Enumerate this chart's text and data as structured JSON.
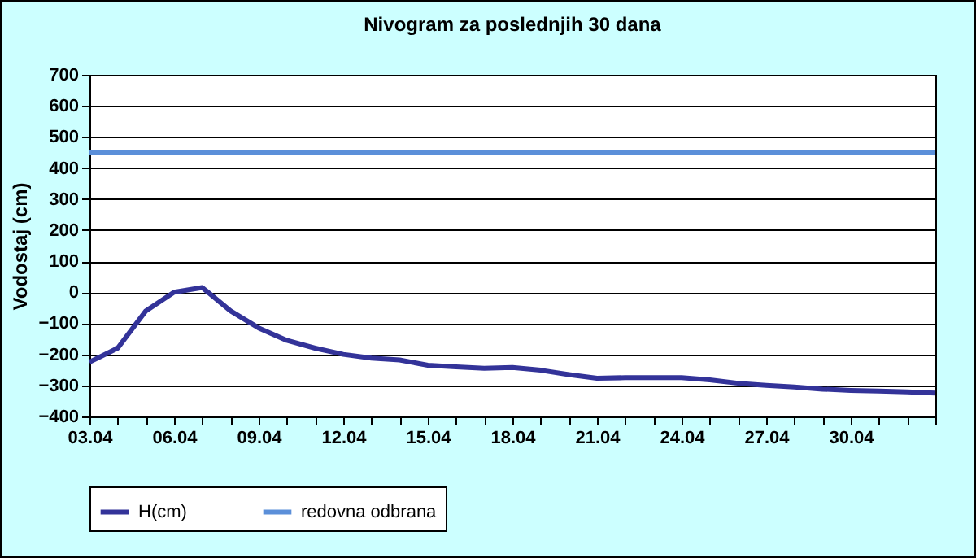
{
  "chart_data": {
    "type": "line",
    "title": "Nivogram za poslednjih 30 dana",
    "ylabel": "Vodostaj (cm)",
    "categories": [
      "03.04",
      null,
      null,
      "06.04",
      null,
      null,
      "09.04",
      null,
      null,
      "12.04",
      null,
      null,
      "15.04",
      null,
      null,
      "18.04",
      null,
      null,
      "21.04",
      null,
      null,
      "24.04",
      null,
      null,
      "27.04",
      null,
      null,
      "30.04",
      null,
      null,
      null
    ],
    "series": [
      {
        "name": "H(cm)",
        "color": "#333399",
        "values": [
          -225,
          -180,
          -60,
          0,
          15,
          -60,
          -115,
          -155,
          -180,
          -200,
          -212,
          -218,
          -235,
          -240,
          -245,
          -242,
          -251,
          -265,
          -277,
          -275,
          -275,
          -275,
          -282,
          -293,
          -300,
          -305,
          -312,
          -316,
          -318,
          -321,
          -325
        ]
      },
      {
        "name": "redovna odbrana",
        "color": "#5b8fd9",
        "values": [
          450,
          450,
          450,
          450,
          450,
          450,
          450,
          450,
          450,
          450,
          450,
          450,
          450,
          450,
          450,
          450,
          450,
          450,
          450,
          450,
          450,
          450,
          450,
          450,
          450,
          450,
          450,
          450,
          450,
          450,
          450
        ]
      }
    ],
    "ylim": [
      -400,
      700
    ],
    "yticks": [
      -400,
      -300,
      -200,
      -100,
      0,
      100,
      200,
      300,
      400,
      500,
      600,
      700
    ],
    "grid": "y",
    "legend": "bottom"
  }
}
